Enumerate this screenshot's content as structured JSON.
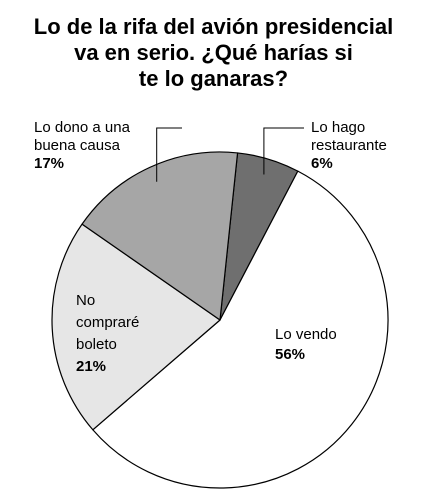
{
  "title": {
    "lines": [
      "Lo de la rifa del avión presidencial",
      "va en serio. ¿Qué harías si",
      "te lo ganaras?"
    ]
  },
  "chart_data": {
    "type": "pie",
    "title": "Lo de la rifa del avión presidencial va en serio. ¿Qué harías si te lo ganaras?",
    "slices": [
      {
        "label_lines": [
          "Lo hago",
          "restaurante"
        ],
        "value": 6,
        "value_label": "6%",
        "color": "#6f6f6f"
      },
      {
        "label_lines": [
          "Lo vendo"
        ],
        "value": 56,
        "value_label": "56%",
        "color": "#ffffff"
      },
      {
        "label_lines": [
          "No",
          "compraré",
          "boleto"
        ],
        "value": 21,
        "value_label": "21%",
        "color": "#e6e6e6"
      },
      {
        "label_lines": [
          "Lo dono a una",
          "buena causa"
        ],
        "value": 17,
        "value_label": "17%",
        "color": "#a6a6a6"
      }
    ],
    "start_angle_deg": 6,
    "direction": "clockwise",
    "legend": "none"
  }
}
